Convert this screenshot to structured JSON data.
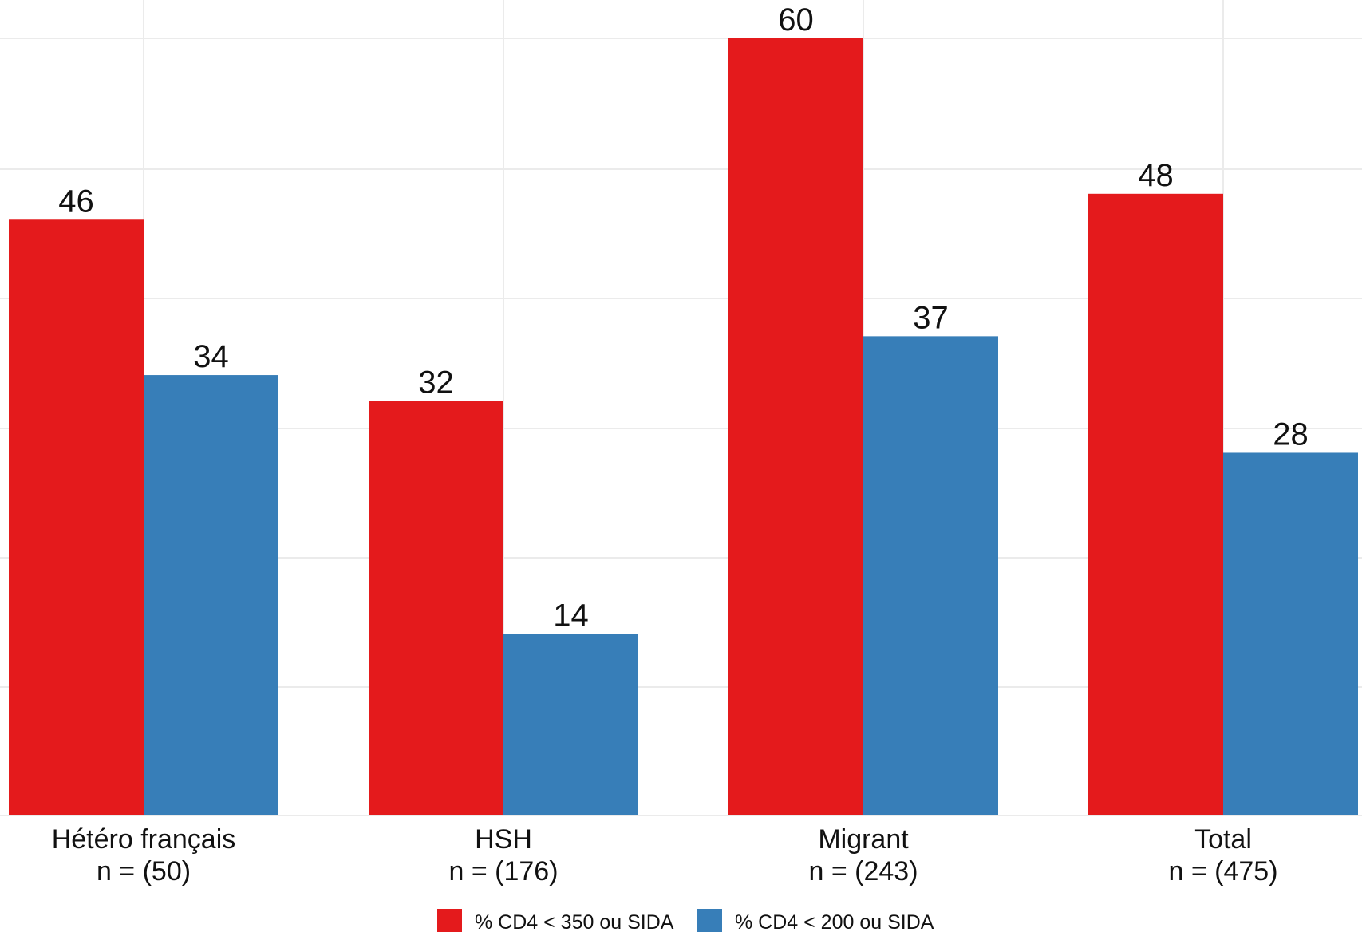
{
  "chart_data": {
    "type": "bar",
    "categories": [
      [
        "Hétéro français",
        "n = (50)"
      ],
      [
        "HSH",
        "n = (176)"
      ],
      [
        "Migrant",
        "n = (243)"
      ],
      [
        "Total",
        "n = (475)"
      ]
    ],
    "series": [
      {
        "name": "% CD4 < 350 ou SIDA",
        "color": "#e41a1c",
        "values": [
          46,
          32,
          60,
          48
        ]
      },
      {
        "name": "% CD4 < 200 ou SIDA",
        "color": "#377eb8",
        "values": [
          34,
          14,
          37,
          28
        ]
      }
    ],
    "ylim": [
      0,
      60
    ],
    "grid": true,
    "legend_position": "bottom",
    "xlabel": "",
    "ylabel": ""
  }
}
